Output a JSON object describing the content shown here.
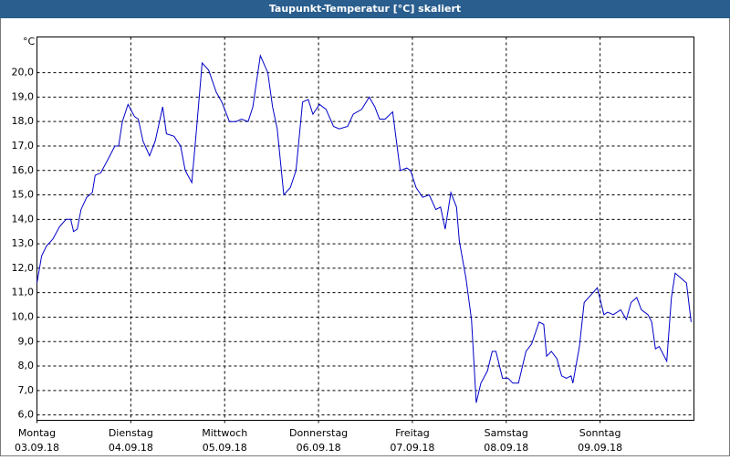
{
  "chart_data": {
    "type": "line",
    "title": "Taupunkt-Temperatur [°C] skaliert",
    "y_unit": "°C",
    "xlim": [
      0,
      7
    ],
    "xticks": [
      {
        "value": 0,
        "label": "Montag"
      },
      {
        "value": 1,
        "label": "Dienstag"
      },
      {
        "value": 2,
        "label": "Mittwoch"
      },
      {
        "value": 3,
        "label": "Donnerstag"
      },
      {
        "value": 4,
        "label": "Freitag"
      },
      {
        "value": 5,
        "label": "Samstag"
      },
      {
        "value": 6,
        "label": "Sonntag"
      }
    ],
    "xtick_dates": [
      "03.09.18",
      "04.09.18",
      "05.09.18",
      "06.09.18",
      "07.09.18",
      "08.09.18",
      "09.09.18"
    ],
    "ylim": [
      5.78,
      21.46
    ],
    "yticks": [
      {
        "value": 6,
        "label": "6,0"
      },
      {
        "value": 7,
        "label": "7,0"
      },
      {
        "value": 8,
        "label": "8,0"
      },
      {
        "value": 9,
        "label": "9,0"
      },
      {
        "value": 10,
        "label": "10,0"
      },
      {
        "value": 11,
        "label": "11,0"
      },
      {
        "value": 12,
        "label": "12,0"
      },
      {
        "value": 13,
        "label": "13,0"
      },
      {
        "value": 14,
        "label": "14,0"
      },
      {
        "value": 15,
        "label": "15,0"
      },
      {
        "value": 16,
        "label": "16,0"
      },
      {
        "value": 17,
        "label": "17,0"
      },
      {
        "value": 18,
        "label": "18,0"
      },
      {
        "value": 19,
        "label": "19,0"
      },
      {
        "value": 20,
        "label": "20,0"
      }
    ],
    "grid": true,
    "color": "#0000c8",
    "x": [
      0,
      0.05,
      0.1,
      0.17,
      0.24,
      0.31,
      0.36,
      0.39,
      0.43,
      0.47,
      0.53,
      0.59,
      0.62,
      0.68,
      0.75,
      0.83,
      0.87,
      0.91,
      0.97,
      1.04,
      1.08,
      1.13,
      1.2,
      1.26,
      1.34,
      1.38,
      1.46,
      1.53,
      1.58,
      1.65,
      1.7,
      1.76,
      1.83,
      1.91,
      1.97,
      2.05,
      2.12,
      2.18,
      2.25,
      2.3,
      2.38,
      2.46,
      2.51,
      2.56,
      2.63,
      2.7,
      2.76,
      2.83,
      2.89,
      2.94,
      3.01,
      3.08,
      3.16,
      3.22,
      3.31,
      3.37,
      3.46,
      3.54,
      3.6,
      3.65,
      3.71,
      3.79,
      3.87,
      3.94,
      3.98,
      4.04,
      4.11,
      4.18,
      4.25,
      4.3,
      4.35,
      4.41,
      4.47,
      4.5,
      4.57,
      4.63,
      4.68,
      4.73,
      4.8,
      4.85,
      4.89,
      4.96,
      5.02,
      5.07,
      5.13,
      5.21,
      5.27,
      5.35,
      5.4,
      5.43,
      5.48,
      5.54,
      5.59,
      5.64,
      5.69,
      5.71,
      5.78,
      5.83,
      5.9,
      5.97,
      6.04,
      6.08,
      6.14,
      6.22,
      6.28,
      6.33,
      6.39,
      6.44,
      6.51,
      6.55,
      6.59,
      6.63,
      6.71,
      6.76,
      6.8,
      6.86,
      6.92,
      6.97
    ],
    "values": [
      11.4,
      12.5,
      12.9,
      13.2,
      13.7,
      14.0,
      14.0,
      13.5,
      13.6,
      14.4,
      14.9,
      15.1,
      15.8,
      15.9,
      16.4,
      17.0,
      17.0,
      18.0,
      18.7,
      18.2,
      18.1,
      17.2,
      16.6,
      17.2,
      18.6,
      17.5,
      17.4,
      17.0,
      16.0,
      15.5,
      17.7,
      20.4,
      20.1,
      19.2,
      18.8,
      18.0,
      18.0,
      18.1,
      18.0,
      18.6,
      20.7,
      20.0,
      18.6,
      17.7,
      15.0,
      15.3,
      16.0,
      18.8,
      18.9,
      18.3,
      18.7,
      18.5,
      17.8,
      17.7,
      17.8,
      18.3,
      18.5,
      19.0,
      18.6,
      18.1,
      18.1,
      18.4,
      16.0,
      16.1,
      16.0,
      15.3,
      14.9,
      15.0,
      14.4,
      14.5,
      13.6,
      15.1,
      14.5,
      13.1,
      11.6,
      9.9,
      6.5,
      7.3,
      7.8,
      8.6,
      8.6,
      7.5,
      7.5,
      7.3,
      7.3,
      8.6,
      8.9,
      9.8,
      9.7,
      8.4,
      8.6,
      8.3,
      7.6,
      7.5,
      7.6,
      7.3,
      8.8,
      10.6,
      10.9,
      11.2,
      10.1,
      10.2,
      10.1,
      10.3,
      9.9,
      10.6,
      10.8,
      10.3,
      10.1,
      9.8,
      8.7,
      8.8,
      8.2,
      10.8,
      11.8,
      11.6,
      11.4,
      9.8
    ]
  }
}
